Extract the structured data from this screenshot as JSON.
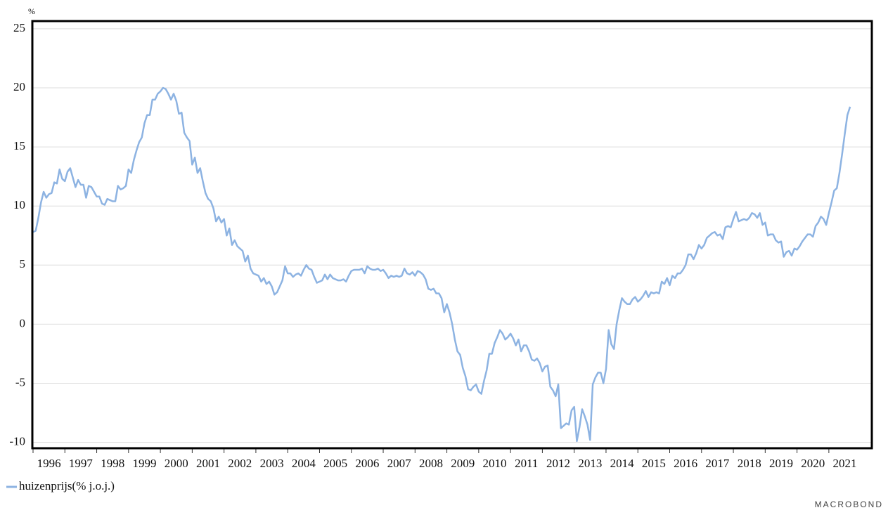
{
  "chart_data": {
    "type": "line",
    "y_unit": "%",
    "brand": "MACROBOND",
    "xlim": [
      1996,
      2022.35
    ],
    "ylim": [
      -10.5,
      25.65
    ],
    "xticks": [
      1996,
      1997,
      1998,
      1999,
      2000,
      2001,
      2002,
      2003,
      2004,
      2005,
      2006,
      2007,
      2008,
      2009,
      2010,
      2011,
      2012,
      2013,
      2014,
      2015,
      2016,
      2017,
      2018,
      2019,
      2020,
      2021
    ],
    "yticks": [
      -10,
      -5,
      0,
      5,
      10,
      15,
      20,
      25
    ],
    "grid": true,
    "x": [
      1996,
      1996.083,
      1996.167,
      1996.25,
      1996.333,
      1996.417,
      1996.5,
      1996.583,
      1996.667,
      1996.75,
      1996.833,
      1996.917,
      1997,
      1997.083,
      1997.167,
      1997.25,
      1997.333,
      1997.417,
      1997.5,
      1997.583,
      1997.667,
      1997.75,
      1997.833,
      1997.917,
      1998,
      1998.083,
      1998.167,
      1998.25,
      1998.333,
      1998.417,
      1998.5,
      1998.583,
      1998.667,
      1998.75,
      1998.833,
      1998.917,
      1999,
      1999.083,
      1999.167,
      1999.25,
      1999.333,
      1999.417,
      1999.5,
      1999.583,
      1999.667,
      1999.75,
      1999.833,
      1999.917,
      2000,
      2000.083,
      2000.167,
      2000.25,
      2000.333,
      2000.417,
      2000.5,
      2000.583,
      2000.667,
      2000.75,
      2000.833,
      2000.917,
      2001,
      2001.083,
      2001.167,
      2001.25,
      2001.333,
      2001.417,
      2001.5,
      2001.583,
      2001.667,
      2001.75,
      2001.833,
      2001.917,
      2002,
      2002.083,
      2002.167,
      2002.25,
      2002.333,
      2002.417,
      2002.5,
      2002.583,
      2002.667,
      2002.75,
      2002.833,
      2002.917,
      2003,
      2003.083,
      2003.167,
      2003.25,
      2003.333,
      2003.417,
      2003.5,
      2003.583,
      2003.667,
      2003.75,
      2003.833,
      2003.917,
      2004,
      2004.083,
      2004.167,
      2004.25,
      2004.333,
      2004.417,
      2004.5,
      2004.583,
      2004.667,
      2004.75,
      2004.833,
      2004.917,
      2005,
      2005.083,
      2005.167,
      2005.25,
      2005.333,
      2005.417,
      2005.5,
      2005.583,
      2005.667,
      2005.75,
      2005.833,
      2005.917,
      2006,
      2006.083,
      2006.167,
      2006.25,
      2006.333,
      2006.417,
      2006.5,
      2006.583,
      2006.667,
      2006.75,
      2006.833,
      2006.917,
      2007,
      2007.083,
      2007.167,
      2007.25,
      2007.333,
      2007.417,
      2007.5,
      2007.583,
      2007.667,
      2007.75,
      2007.833,
      2007.917,
      2008,
      2008.083,
      2008.167,
      2008.25,
      2008.333,
      2008.417,
      2008.5,
      2008.583,
      2008.667,
      2008.75,
      2008.833,
      2008.917,
      2009,
      2009.083,
      2009.167,
      2009.25,
      2009.333,
      2009.417,
      2009.5,
      2009.583,
      2009.667,
      2009.75,
      2009.833,
      2009.917,
      2010,
      2010.083,
      2010.167,
      2010.25,
      2010.333,
      2010.417,
      2010.5,
      2010.583,
      2010.667,
      2010.75,
      2010.833,
      2010.917,
      2011,
      2011.083,
      2011.167,
      2011.25,
      2011.333,
      2011.417,
      2011.5,
      2011.583,
      2011.667,
      2011.75,
      2011.833,
      2011.917,
      2012,
      2012.083,
      2012.167,
      2012.25,
      2012.333,
      2012.417,
      2012.5,
      2012.583,
      2012.667,
      2012.75,
      2012.833,
      2012.917,
      2013,
      2013.083,
      2013.167,
      2013.25,
      2013.333,
      2013.417,
      2013.5,
      2013.583,
      2013.667,
      2013.75,
      2013.833,
      2013.917,
      2014,
      2014.083,
      2014.167,
      2014.25,
      2014.333,
      2014.417,
      2014.5,
      2014.583,
      2014.667,
      2014.75,
      2014.833,
      2014.917,
      2015,
      2015.083,
      2015.167,
      2015.25,
      2015.333,
      2015.417,
      2015.5,
      2015.583,
      2015.667,
      2015.75,
      2015.833,
      2015.917,
      2016,
      2016.083,
      2016.167,
      2016.25,
      2016.333,
      2016.417,
      2016.5,
      2016.583,
      2016.667,
      2016.75,
      2016.833,
      2016.917,
      2017,
      2017.083,
      2017.167,
      2017.25,
      2017.333,
      2017.417,
      2017.5,
      2017.583,
      2017.667,
      2017.75,
      2017.833,
      2017.917,
      2018,
      2018.083,
      2018.167,
      2018.25,
      2018.333,
      2018.417,
      2018.5,
      2018.583,
      2018.667,
      2018.75,
      2018.833,
      2018.917,
      2019,
      2019.083,
      2019.167,
      2019.25,
      2019.333,
      2019.417,
      2019.5,
      2019.583,
      2019.667,
      2019.75,
      2019.833,
      2019.917,
      2020,
      2020.083,
      2020.167,
      2020.25,
      2020.333,
      2020.417,
      2020.5,
      2020.583,
      2020.667,
      2020.75,
      2020.833,
      2020.917,
      2021,
      2021.083,
      2021.167,
      2021.25,
      2021.333,
      2021.417,
      2021.5,
      2021.583,
      2021.667
    ],
    "series": [
      {
        "name": "huizenprijs(% j.o.j.)",
        "color": "#8db3e2",
        "values": [
          7.8,
          7.9,
          9,
          10.3,
          11.2,
          10.7,
          11,
          11.1,
          12,
          11.9,
          13.1,
          12.3,
          12.1,
          12.9,
          13.2,
          12.4,
          11.6,
          12.2,
          11.8,
          11.8,
          10.7,
          11.7,
          11.6,
          11.2,
          10.8,
          10.8,
          10.2,
          10.1,
          10.6,
          10.5,
          10.4,
          10.4,
          11.7,
          11.4,
          11.5,
          11.7,
          13.1,
          12.8,
          13.9,
          14.7,
          15.4,
          15.8,
          17,
          17.7,
          17.7,
          19,
          19,
          19.5,
          19.7,
          20,
          19.9,
          19.5,
          19,
          19.5,
          18.9,
          17.8,
          17.9,
          16.2,
          15.8,
          15.5,
          13.5,
          14.1,
          12.8,
          13.2,
          12.1,
          11.1,
          10.6,
          10.4,
          9.8,
          8.7,
          9.1,
          8.6,
          8.9,
          7.5,
          8.1,
          6.7,
          7.1,
          6.6,
          6.4,
          6.2,
          5.3,
          5.8,
          4.7,
          4.3,
          4.2,
          4.1,
          3.6,
          3.9,
          3.4,
          3.6,
          3.2,
          2.5,
          2.7,
          3.2,
          3.7,
          4.9,
          4.3,
          4.3,
          4,
          4.2,
          4.3,
          4.1,
          4.6,
          5,
          4.7,
          4.6,
          4,
          3.5,
          3.6,
          3.7,
          4.2,
          3.8,
          4.2,
          3.9,
          3.8,
          3.7,
          3.7,
          3.8,
          3.6,
          4.1,
          4.5,
          4.6,
          4.6,
          4.6,
          4.7,
          4.3,
          4.9,
          4.7,
          4.6,
          4.6,
          4.7,
          4.5,
          4.6,
          4.3,
          3.9,
          4.1,
          4,
          4.1,
          4,
          4.1,
          4.7,
          4.3,
          4.2,
          4.4,
          4.1,
          4.5,
          4.4,
          4.2,
          3.8,
          3,
          2.9,
          3,
          2.6,
          2.6,
          2.2,
          1,
          1.7,
          1,
          0,
          -1.3,
          -2.3,
          -2.6,
          -3.7,
          -4.4,
          -5.5,
          -5.6,
          -5.3,
          -5.1,
          -5.7,
          -5.9,
          -4.8,
          -3.9,
          -2.5,
          -2.5,
          -1.6,
          -1.1,
          -0.5,
          -0.8,
          -1.3,
          -1.1,
          -0.8,
          -1.2,
          -1.8,
          -1.3,
          -2.3,
          -1.8,
          -1.8,
          -2.3,
          -3,
          -3.1,
          -2.9,
          -3.3,
          -4,
          -3.6,
          -3.5,
          -5.3,
          -5.6,
          -6.1,
          -5.1,
          -8.8,
          -8.6,
          -8.4,
          -8.5,
          -7.3,
          -7,
          -9.9,
          -8.7,
          -7.2,
          -7.8,
          -8.5,
          -9.8,
          -5.1,
          -4.5,
          -4.1,
          -4.1,
          -5,
          -3.8,
          -0.5,
          -1.7,
          -2.1,
          0,
          1.2,
          2.2,
          1.9,
          1.7,
          1.7,
          2.1,
          2.3,
          1.9,
          2.1,
          2.4,
          2.8,
          2.3,
          2.7,
          2.6,
          2.7,
          2.6,
          3.6,
          3.4,
          3.9,
          3.3,
          4.1,
          3.9,
          4.3,
          4.3,
          4.6,
          5,
          5.9,
          5.9,
          5.5,
          6,
          6.7,
          6.4,
          6.7,
          7.3,
          7.5,
          7.7,
          7.8,
          7.5,
          7.6,
          7.2,
          8.2,
          8.3,
          8.2,
          8.9,
          9.5,
          8.7,
          8.8,
          8.9,
          8.8,
          9,
          9.4,
          9.3,
          9,
          9.4,
          8.4,
          8.6,
          7.5,
          7.6,
          7.6,
          7.1,
          6.9,
          7,
          5.7,
          6.1,
          6.2,
          5.8,
          6.4,
          6.3,
          6.6,
          7,
          7.3,
          7.6,
          7.6,
          7.4,
          8.3,
          8.6,
          9.1,
          8.9,
          8.4,
          9.4,
          10.3,
          11.3,
          11.5,
          12.8,
          14.4,
          16.1,
          17.7,
          18.4
        ]
      }
    ]
  }
}
